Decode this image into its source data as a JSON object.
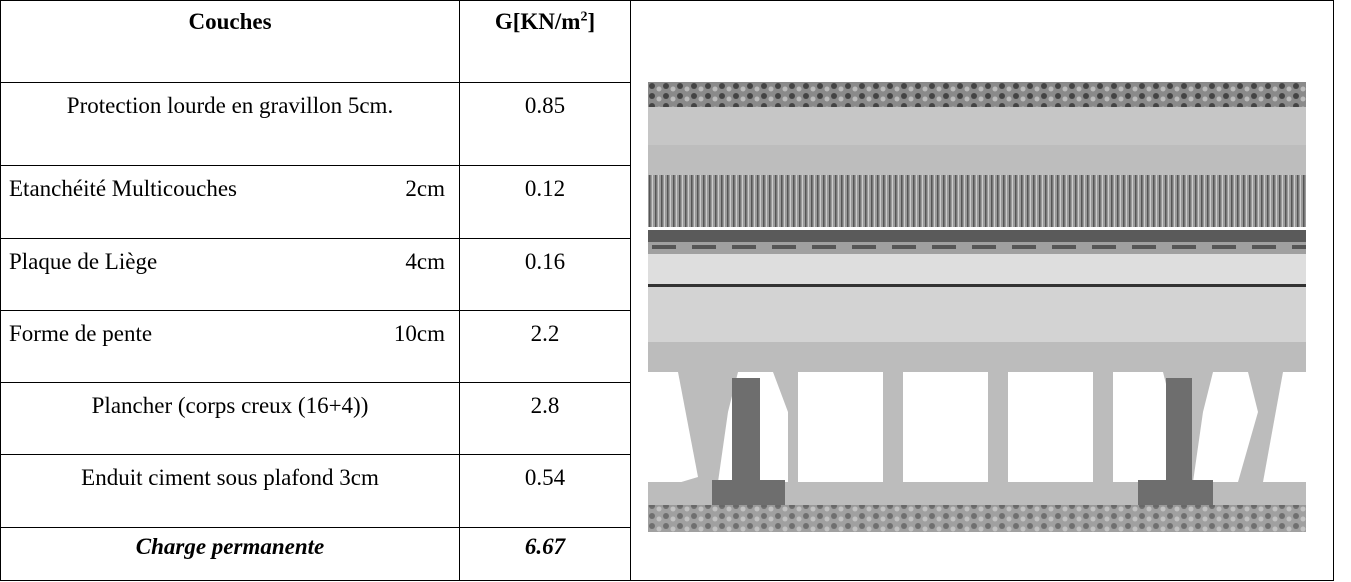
{
  "table": {
    "header": {
      "layer": "Couches",
      "unit": {
        "text": "G[KN/m",
        "sup": "2",
        "close": "]"
      }
    },
    "rows": [
      {
        "layer": "Protection lourde en gravillon 5cm.",
        "G": 0.85
      },
      {
        "layer": "Etanchéité Multicouches",
        "thickness": "2cm",
        "G": 0.12
      },
      {
        "layer": "Plaque de Liège",
        "thickness": "4cm",
        "G": 0.16
      },
      {
        "layer": "Forme de pente",
        "thickness": "10cm",
        "G": 2.2
      },
      {
        "layer": "Plancher (corps creux (16+4))",
        "G": 2.8
      },
      {
        "layer": "Enduit ciment sous plafond 3cm",
        "G": 0.54
      }
    ],
    "total": {
      "layer": "Charge permanente",
      "G": 6.67
    }
  }
}
